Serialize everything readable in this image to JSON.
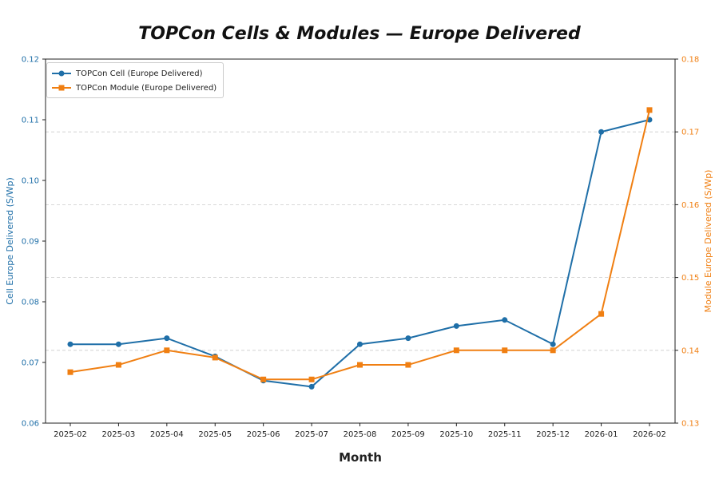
{
  "chart_data": {
    "type": "line",
    "title": "TOPCon Cells & Modules — Europe Delivered",
    "xlabel": "Month",
    "ylabel_left": "Cell Europe Delivered (S/Wp)",
    "ylabel_right": "Module Europe Delivered (S/Wp)",
    "categories": [
      "2025-02",
      "2025-03",
      "2025-04",
      "2025-05",
      "2025-06",
      "2025-07",
      "2025-08",
      "2025-09",
      "2025-10",
      "2025-11",
      "2025-12",
      "2026-01",
      "2026-02"
    ],
    "ylim_left": [
      0.06,
      0.12
    ],
    "ylim_right": [
      0.13,
      0.18
    ],
    "yticks_left": [
      "0.06",
      "0.07",
      "0.08",
      "0.09",
      "0.10",
      "0.11",
      "0.12"
    ],
    "yticks_right": [
      "0.13",
      "0.14",
      "0.15",
      "0.16",
      "0.17",
      "0.18"
    ],
    "grid": "horizontal dashed (right axis)",
    "legend_position": "top-left",
    "series": [
      {
        "name": "TOPCon Cell (Europe Delivered)",
        "axis": "left",
        "color": "#1f6fa8",
        "marker": "circle",
        "values": [
          0.073,
          0.073,
          0.074,
          0.071,
          0.067,
          0.066,
          0.073,
          0.074,
          0.076,
          0.077,
          0.073,
          0.108,
          0.11
        ]
      },
      {
        "name": "TOPCon Module (Europe Delivered)",
        "axis": "right",
        "color": "#f07f12",
        "marker": "square",
        "values": [
          0.137,
          0.138,
          0.14,
          0.139,
          0.136,
          0.136,
          0.138,
          0.138,
          0.14,
          0.14,
          0.14,
          0.145,
          0.173
        ]
      }
    ]
  }
}
